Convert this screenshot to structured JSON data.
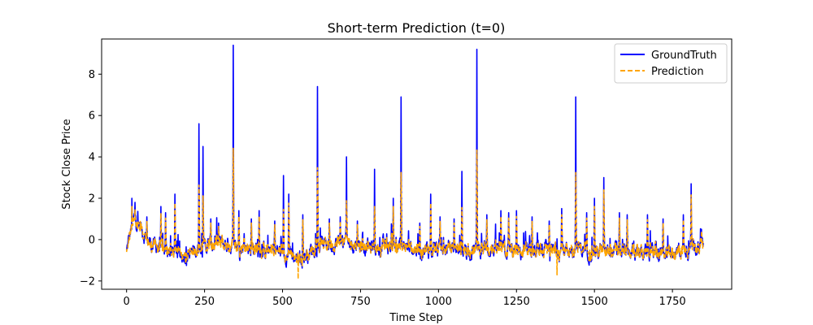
{
  "chart_data": {
    "type": "line",
    "title": "Short-term Prediction (t=0)",
    "xlabel": "Time Step",
    "ylabel": "Stock Close Price",
    "xlim": [
      -80,
      1940
    ],
    "ylim": [
      -2.4,
      9.7
    ],
    "xticks": [
      0,
      250,
      500,
      750,
      1000,
      1250,
      1500,
      1750
    ],
    "yticks": [
      -2,
      0,
      2,
      4,
      6,
      8
    ],
    "grid": false,
    "legend_position": "top-right",
    "n_points": 1850,
    "series": [
      {
        "name": "GroundTruth",
        "color": "#0000ff",
        "style": "solid",
        "baseline_profile": [
          [
            0,
            -0.6
          ],
          [
            10,
            0.2
          ],
          [
            25,
            1.0
          ],
          [
            45,
            0.6
          ],
          [
            70,
            -0.1
          ],
          [
            100,
            -0.4
          ],
          [
            150,
            -0.6
          ],
          [
            200,
            -0.7
          ],
          [
            250,
            -0.3
          ],
          [
            300,
            -0.2
          ],
          [
            345,
            -0.3
          ],
          [
            400,
            -0.4
          ],
          [
            450,
            -0.5
          ],
          [
            500,
            -0.6
          ],
          [
            540,
            -0.9
          ],
          [
            570,
            -0.8
          ],
          [
            610,
            -0.3
          ],
          [
            650,
            -0.2
          ],
          [
            700,
            -0.1
          ],
          [
            750,
            -0.3
          ],
          [
            800,
            -0.4
          ],
          [
            850,
            -0.3
          ],
          [
            900,
            -0.4
          ],
          [
            950,
            -0.5
          ],
          [
            1000,
            -0.5
          ],
          [
            1050,
            -0.4
          ],
          [
            1100,
            -0.5
          ],
          [
            1150,
            -0.4
          ],
          [
            1200,
            -0.5
          ],
          [
            1250,
            -0.6
          ],
          [
            1300,
            -0.7
          ],
          [
            1350,
            -0.6
          ],
          [
            1400,
            -0.5
          ],
          [
            1450,
            -0.4
          ],
          [
            1500,
            -0.6
          ],
          [
            1550,
            -0.6
          ],
          [
            1600,
            -0.6
          ],
          [
            1650,
            -0.6
          ],
          [
            1700,
            -0.6
          ],
          [
            1750,
            -0.6
          ],
          [
            1800,
            -0.5
          ],
          [
            1849,
            -0.3
          ]
        ],
        "spikes": [
          [
            17,
            2.0
          ],
          [
            27,
            1.8
          ],
          [
            65,
            1.1
          ],
          [
            110,
            1.6
          ],
          [
            125,
            1.3
          ],
          [
            155,
            2.2
          ],
          [
            232,
            5.6
          ],
          [
            245,
            4.5
          ],
          [
            270,
            1.0
          ],
          [
            295,
            0.8
          ],
          [
            342,
            9.4
          ],
          [
            360,
            1.4
          ],
          [
            400,
            1.0
          ],
          [
            425,
            1.4
          ],
          [
            475,
            0.9
          ],
          [
            503,
            3.1
          ],
          [
            520,
            2.2
          ],
          [
            565,
            1.2
          ],
          [
            612,
            7.4
          ],
          [
            650,
            1.0
          ],
          [
            685,
            1.1
          ],
          [
            705,
            4.0
          ],
          [
            740,
            0.9
          ],
          [
            795,
            3.4
          ],
          [
            855,
            2.0
          ],
          [
            880,
            6.9
          ],
          [
            940,
            0.8
          ],
          [
            975,
            2.2
          ],
          [
            1005,
            1.1
          ],
          [
            1050,
            1.0
          ],
          [
            1075,
            3.3
          ],
          [
            1123,
            9.2
          ],
          [
            1155,
            1.2
          ],
          [
            1200,
            1.4
          ],
          [
            1225,
            1.3
          ],
          [
            1250,
            1.4
          ],
          [
            1300,
            1.1
          ],
          [
            1355,
            0.9
          ],
          [
            1395,
            1.5
          ],
          [
            1440,
            6.9
          ],
          [
            1475,
            1.3
          ],
          [
            1500,
            2.0
          ],
          [
            1530,
            3.0
          ],
          [
            1580,
            1.3
          ],
          [
            1605,
            1.2
          ],
          [
            1670,
            1.2
          ],
          [
            1720,
            1.0
          ],
          [
            1785,
            1.2
          ],
          [
            1810,
            2.7
          ],
          [
            1843,
            0.5
          ]
        ]
      },
      {
        "name": "Prediction",
        "color": "#ffa500",
        "style": "dashed",
        "dips": [
          [
            550,
            -1.9
          ],
          [
            1380,
            -1.7
          ]
        ]
      }
    ]
  }
}
